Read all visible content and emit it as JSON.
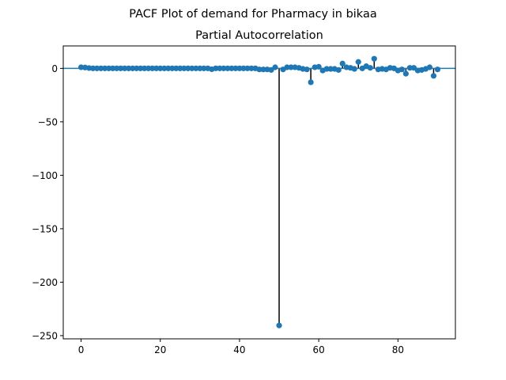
{
  "figure": {
    "suptitle": "PACF Plot of demand for Pharmacy in bikaa"
  },
  "chart_data": {
    "type": "scatter",
    "title": "Partial Autocorrelation",
    "xlabel": "",
    "ylabel": "",
    "xlim": [
      -4.5,
      94.5
    ],
    "ylim": [
      -253,
      21
    ],
    "x_ticks": [
      0,
      20,
      40,
      60,
      80
    ],
    "x_tick_labels": [
      "0",
      "20",
      "40",
      "60",
      "80"
    ],
    "y_ticks": [
      0,
      -50,
      -100,
      -150,
      -200,
      -250
    ],
    "y_tick_labels": [
      "0",
      "−50",
      "−100",
      "−150",
      "−200",
      "−250"
    ],
    "grid": false,
    "legend": "none",
    "zero_line": 0,
    "series": [
      {
        "x": [
          0,
          1,
          2,
          3,
          4,
          5,
          6,
          7,
          8,
          9,
          10,
          11,
          12,
          13,
          14,
          15,
          16,
          17,
          18,
          19,
          20,
          21,
          22,
          23,
          24,
          25,
          26,
          27,
          28,
          29,
          30,
          31,
          32,
          33,
          34,
          35,
          36,
          37,
          38,
          39,
          40,
          41,
          42,
          43,
          44,
          45,
          46,
          47,
          48,
          49,
          50,
          51,
          52,
          53,
          54,
          55,
          56,
          57,
          58,
          59,
          60,
          61,
          62,
          63,
          64,
          65,
          66,
          67,
          68,
          69,
          70,
          71,
          72,
          73,
          74,
          75,
          76,
          77,
          78,
          79,
          80,
          81,
          82,
          83,
          84,
          85,
          86,
          87,
          88,
          89,
          90
        ],
        "values": [
          1,
          0.8,
          0.3,
          0,
          0,
          0,
          0,
          0,
          0,
          0,
          0,
          0,
          0,
          0,
          0,
          0,
          0,
          0,
          0,
          0,
          0,
          0,
          0,
          0,
          0,
          0,
          0,
          0,
          0,
          0,
          0,
          0,
          0,
          -0.8,
          0,
          0,
          0,
          0,
          0,
          0,
          0,
          0,
          0,
          0,
          0,
          -1,
          -1,
          -1,
          -1.5,
          1,
          -240.5,
          -1,
          1,
          1,
          1,
          0.5,
          -0.5,
          -1,
          -13,
          1,
          1.5,
          -2,
          -0.5,
          -0.5,
          -0.5,
          -1.5,
          4.5,
          1,
          0.5,
          -0.5,
          6,
          0,
          2,
          0.5,
          9,
          -1,
          -0.5,
          -1,
          0.5,
          0,
          -2,
          -1,
          -5,
          0.5,
          0.5,
          -2,
          -1.5,
          -0.5,
          1,
          -7,
          -1
        ]
      }
    ]
  },
  "colors": {
    "marker": "#1f77b4",
    "zero_line": "#1f77b4",
    "stem": "#000000",
    "axis": "#000000",
    "background": "#ffffff"
  }
}
